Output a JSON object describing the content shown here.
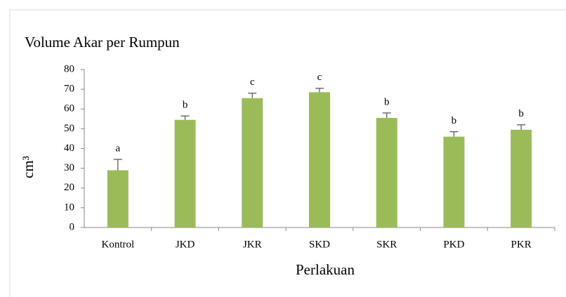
{
  "chart_data": {
    "type": "bar",
    "title": "Volume Akar per Rumpun",
    "x_label": "Perlakuan",
    "y_label": "cm³",
    "categories": [
      "Kontrol",
      "JKD",
      "JKR",
      "SKD",
      "SKR",
      "PKD",
      "PKR"
    ],
    "values": [
      29,
      54.5,
      65.5,
      68.5,
      55.5,
      46,
      49.5
    ],
    "errors": [
      5.5,
      2,
      2.5,
      2,
      2.5,
      2.5,
      2.5
    ],
    "annotations": [
      "a",
      "b",
      "c",
      "c",
      "b",
      "b",
      "b"
    ],
    "color": "#9bbb59",
    "ylim": [
      0,
      80
    ],
    "yticks": [
      0,
      10,
      20,
      30,
      40,
      50,
      60,
      70,
      80
    ],
    "grid": false
  }
}
